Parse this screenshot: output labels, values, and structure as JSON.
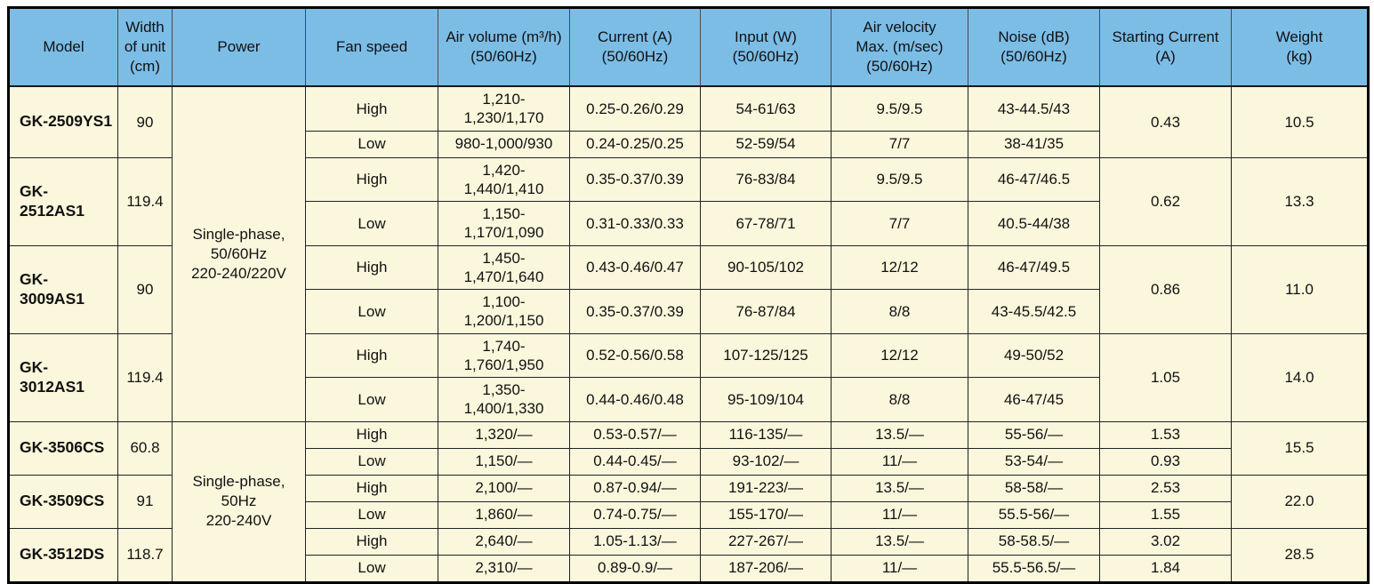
{
  "colors": {
    "header_bg": "#7cbde6",
    "cell_bg": "#fbf7dc",
    "grid_line": "#222222",
    "outer_border": "#000000",
    "text": "#111111"
  },
  "table": {
    "headers": [
      {
        "id": "model",
        "label": "Model"
      },
      {
        "id": "width",
        "label": "Width\nof unit\n(cm)"
      },
      {
        "id": "power",
        "label": "Power"
      },
      {
        "id": "fan_speed",
        "label": "Fan speed"
      },
      {
        "id": "air_volume",
        "label": "Air volume (m³/h)\n(50/60Hz)"
      },
      {
        "id": "current",
        "label": "Current (A)\n(50/60Hz)"
      },
      {
        "id": "input",
        "label": "Input (W)\n(50/60Hz)"
      },
      {
        "id": "air_velocity",
        "label": "Air velocity\nMax. (m/sec)\n(50/60Hz)"
      },
      {
        "id": "noise",
        "label": "Noise (dB)\n(50/60Hz)"
      },
      {
        "id": "starting_current",
        "label": "Starting Current\n(A)"
      },
      {
        "id": "weight",
        "label": "Weight\n(kg)"
      }
    ],
    "power_groups": [
      {
        "label": "Single-phase,\n50/60Hz\n220-240/220V",
        "model_count": 4
      },
      {
        "label": "Single-phase,\n50Hz\n220-240V",
        "model_count": 3
      }
    ],
    "models": [
      {
        "model": "GK-2509YS1",
        "width": "90",
        "power_group": 0,
        "starting_current": "0.43",
        "weight": "10.5",
        "rows": [
          {
            "fan_speed": "High",
            "air_volume": "1,210-1,230/1,170",
            "current": "0.25-0.26/0.29",
            "input": "54-61/63",
            "air_velocity": "9.5/9.5",
            "noise": "43-44.5/43"
          },
          {
            "fan_speed": "Low",
            "air_volume": "980-1,000/930",
            "current": "0.24-0.25/0.25",
            "input": "52-59/54",
            "air_velocity": "7/7",
            "noise": "38-41/35"
          }
        ]
      },
      {
        "model": "GK-2512AS1",
        "width": "119.4",
        "power_group": 0,
        "starting_current": "0.62",
        "weight": "13.3",
        "rows": [
          {
            "fan_speed": "High",
            "air_volume": "1,420-1,440/1,410",
            "current": "0.35-0.37/0.39",
            "input": "76-83/84",
            "air_velocity": "9.5/9.5",
            "noise": "46-47/46.5"
          },
          {
            "fan_speed": "Low",
            "air_volume": "1,150-1,170/1,090",
            "current": "0.31-0.33/0.33",
            "input": "67-78/71",
            "air_velocity": "7/7",
            "noise": "40.5-44/38"
          }
        ]
      },
      {
        "model": "GK-3009AS1",
        "width": "90",
        "power_group": 0,
        "starting_current": "0.86",
        "weight": "11.0",
        "rows": [
          {
            "fan_speed": "High",
            "air_volume": "1,450-1,470/1,640",
            "current": "0.43-0.46/0.47",
            "input": "90-105/102",
            "air_velocity": "12/12",
            "noise": "46-47/49.5"
          },
          {
            "fan_speed": "Low",
            "air_volume": "1,100-1,200/1,150",
            "current": "0.35-0.37/0.39",
            "input": "76-87/84",
            "air_velocity": "8/8",
            "noise": "43-45.5/42.5"
          }
        ]
      },
      {
        "model": "GK-3012AS1",
        "width": "119.4",
        "power_group": 0,
        "starting_current": "1.05",
        "weight": "14.0",
        "rows": [
          {
            "fan_speed": "High",
            "air_volume": "1,740-1,760/1,950",
            "current": "0.52-0.56/0.58",
            "input": "107-125/125",
            "air_velocity": "12/12",
            "noise": "49-50/52"
          },
          {
            "fan_speed": "Low",
            "air_volume": "1,350-1,400/1,330",
            "current": "0.44-0.46/0.48",
            "input": "95-109/104",
            "air_velocity": "8/8",
            "noise": "46-47/45"
          }
        ]
      },
      {
        "model": "GK-3506CS",
        "width": "60.8",
        "power_group": 1,
        "weight": "15.5",
        "rows": [
          {
            "fan_speed": "High",
            "air_volume": "1,320/—",
            "current": "0.53-0.57/—",
            "input": "116-135/—",
            "air_velocity": "13.5/—",
            "noise": "55-56/—",
            "starting_current": "1.53"
          },
          {
            "fan_speed": "Low",
            "air_volume": "1,150/—",
            "current": "0.44-0.45/—",
            "input": "93-102/—",
            "air_velocity": "11/—",
            "noise": "53-54/—",
            "starting_current": "0.93"
          }
        ]
      },
      {
        "model": "GK-3509CS",
        "width": "91",
        "power_group": 1,
        "weight": "22.0",
        "rows": [
          {
            "fan_speed": "High",
            "air_volume": "2,100/—",
            "current": "0.87-0.94/—",
            "input": "191-223/—",
            "air_velocity": "13.5/—",
            "noise": "58-58/—",
            "starting_current": "2.53"
          },
          {
            "fan_speed": "Low",
            "air_volume": "1,860/—",
            "current": "0.74-0.75/—",
            "input": "155-170/—",
            "air_velocity": "11/—",
            "noise": "55.5-56/—",
            "starting_current": "1.55"
          }
        ]
      },
      {
        "model": "GK-3512DS",
        "width": "118.7",
        "power_group": 1,
        "weight": "28.5",
        "rows": [
          {
            "fan_speed": "High",
            "air_volume": "2,640/—",
            "current": "1.05-1.13/—",
            "input": "227-267/—",
            "air_velocity": "13.5/—",
            "noise": "58-58.5/—",
            "starting_current": "3.02"
          },
          {
            "fan_speed": "Low",
            "air_volume": "2,310/—",
            "current": "0.89-0.9/—",
            "input": "187-206/—",
            "air_velocity": "11/—",
            "noise": "55.5-56.5/—",
            "starting_current": "1.84"
          }
        ]
      }
    ]
  }
}
